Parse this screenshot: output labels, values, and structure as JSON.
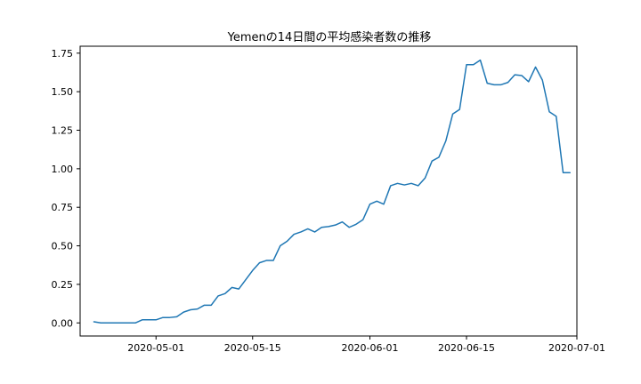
{
  "chart_data": {
    "type": "line",
    "title": "Yemenの14日間の平均感染者数の推移",
    "xlabel": "",
    "ylabel": "",
    "x_start": "2020-04-22",
    "xlim": [
      "2020-04-20",
      "2020-07-01"
    ],
    "ylim": [
      -0.085,
      1.795
    ],
    "x_ticks": [
      "2020-05-01",
      "2020-05-15",
      "2020-06-01",
      "2020-06-15",
      "2020-07-01"
    ],
    "y_ticks": [
      0.0,
      0.25,
      0.5,
      0.75,
      1.0,
      1.25,
      1.5,
      1.75
    ],
    "y_tick_labels": [
      "0.00",
      "0.25",
      "0.50",
      "0.75",
      "1.00",
      "1.25",
      "1.50",
      "1.75"
    ],
    "grid": false,
    "series": [
      {
        "name": "",
        "color": "#1f77b4",
        "x": [
          "2020-04-22",
          "2020-04-23",
          "2020-04-24",
          "2020-04-25",
          "2020-04-26",
          "2020-04-27",
          "2020-04-28",
          "2020-04-29",
          "2020-04-30",
          "2020-05-01",
          "2020-05-02",
          "2020-05-03",
          "2020-05-04",
          "2020-05-05",
          "2020-05-06",
          "2020-05-07",
          "2020-05-08",
          "2020-05-09",
          "2020-05-10",
          "2020-05-11",
          "2020-05-12",
          "2020-05-13",
          "2020-05-14",
          "2020-05-15",
          "2020-05-16",
          "2020-05-17",
          "2020-05-18",
          "2020-05-19",
          "2020-05-20",
          "2020-05-21",
          "2020-05-22",
          "2020-05-23",
          "2020-05-24",
          "2020-05-25",
          "2020-05-26",
          "2020-05-27",
          "2020-05-28",
          "2020-05-29",
          "2020-05-30",
          "2020-05-31",
          "2020-06-01",
          "2020-06-02",
          "2020-06-03",
          "2020-06-04",
          "2020-06-05",
          "2020-06-06",
          "2020-06-07",
          "2020-06-08",
          "2020-06-09",
          "2020-06-10",
          "2020-06-11",
          "2020-06-12",
          "2020-06-13",
          "2020-06-14",
          "2020-06-15",
          "2020-06-16",
          "2020-06-17",
          "2020-06-18",
          "2020-06-19",
          "2020-06-20",
          "2020-06-21",
          "2020-06-22",
          "2020-06-23",
          "2020-06-24",
          "2020-06-25",
          "2020-06-26",
          "2020-06-27",
          "2020-06-28",
          "2020-06-29",
          "2020-06-30"
        ],
        "values": [
          0.007,
          0.0,
          0.0,
          0.0,
          0.0,
          0.0,
          0.0,
          0.02,
          0.02,
          0.02,
          0.035,
          0.035,
          0.04,
          0.07,
          0.085,
          0.09,
          0.115,
          0.115,
          0.175,
          0.19,
          0.23,
          0.22,
          0.28,
          0.34,
          0.39,
          0.405,
          0.405,
          0.5,
          0.53,
          0.575,
          0.59,
          0.61,
          0.59,
          0.62,
          0.625,
          0.635,
          0.655,
          0.62,
          0.64,
          0.67,
          0.77,
          0.79,
          0.77,
          0.89,
          0.905,
          0.895,
          0.905,
          0.89,
          0.94,
          1.05,
          1.075,
          1.18,
          1.355,
          1.385,
          1.675,
          1.675,
          1.705,
          1.555,
          1.545,
          1.545,
          1.56,
          1.61,
          1.605,
          1.565,
          1.66,
          1.575,
          1.37,
          1.34,
          0.975,
          0.975
        ]
      }
    ]
  }
}
